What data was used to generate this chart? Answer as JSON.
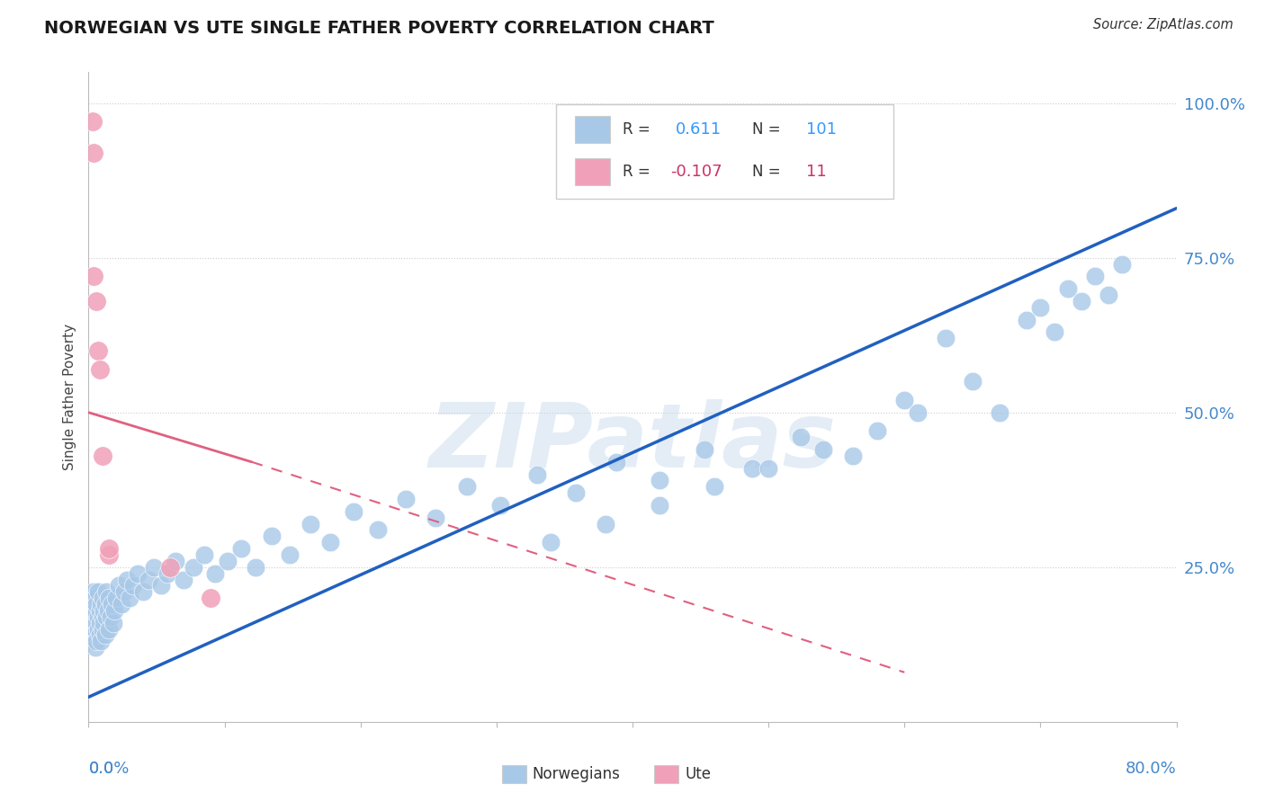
{
  "title": "NORWEGIAN VS UTE SINGLE FATHER POVERTY CORRELATION CHART",
  "source": "Source: ZipAtlas.com",
  "ylabel": "Single Father Poverty",
  "r_norwegian": 0.611,
  "n_norwegian": 101,
  "r_ute": -0.107,
  "n_ute": 11,
  "norwegian_color": "#a8c8e8",
  "ute_color": "#f0a0b8",
  "norwegian_line_color": "#2060c0",
  "ute_line_color": "#e06080",
  "background_color": "#ffffff",
  "grid_color": "#cccccc",
  "title_color": "#1a1a1a",
  "axis_label_color": "#4488cc",
  "legend_r_color_norwegian": "#3399ff",
  "legend_r_color_ute": "#cc3366",
  "norwegians_x": [
    0.001,
    0.001,
    0.002,
    0.002,
    0.002,
    0.003,
    0.003,
    0.003,
    0.004,
    0.004,
    0.004,
    0.005,
    0.005,
    0.005,
    0.005,
    0.006,
    0.006,
    0.006,
    0.007,
    0.007,
    0.007,
    0.008,
    0.008,
    0.008,
    0.009,
    0.009,
    0.01,
    0.01,
    0.01,
    0.011,
    0.011,
    0.012,
    0.012,
    0.013,
    0.013,
    0.014,
    0.015,
    0.015,
    0.016,
    0.017,
    0.018,
    0.019,
    0.02,
    0.022,
    0.024,
    0.026,
    0.028,
    0.03,
    0.033,
    0.036,
    0.04,
    0.044,
    0.048,
    0.053,
    0.058,
    0.064,
    0.07,
    0.077,
    0.085,
    0.093,
    0.102,
    0.112,
    0.123,
    0.135,
    0.148,
    0.163,
    0.178,
    0.195,
    0.213,
    0.233,
    0.255,
    0.278,
    0.303,
    0.33,
    0.358,
    0.388,
    0.42,
    0.453,
    0.488,
    0.524,
    0.562,
    0.6,
    0.63,
    0.65,
    0.67,
    0.69,
    0.7,
    0.71,
    0.72,
    0.73,
    0.74,
    0.75,
    0.76,
    0.61,
    0.58,
    0.54,
    0.5,
    0.46,
    0.42,
    0.38,
    0.34
  ],
  "norwegians_y": [
    0.17,
    0.14,
    0.18,
    0.15,
    0.2,
    0.16,
    0.13,
    0.19,
    0.17,
    0.14,
    0.21,
    0.15,
    0.18,
    0.12,
    0.2,
    0.16,
    0.19,
    0.13,
    0.17,
    0.15,
    0.21,
    0.14,
    0.18,
    0.16,
    0.19,
    0.13,
    0.17,
    0.2,
    0.15,
    0.18,
    0.16,
    0.19,
    0.14,
    0.17,
    0.21,
    0.18,
    0.15,
    0.2,
    0.17,
    0.19,
    0.16,
    0.18,
    0.2,
    0.22,
    0.19,
    0.21,
    0.23,
    0.2,
    0.22,
    0.24,
    0.21,
    0.23,
    0.25,
    0.22,
    0.24,
    0.26,
    0.23,
    0.25,
    0.27,
    0.24,
    0.26,
    0.28,
    0.25,
    0.3,
    0.27,
    0.32,
    0.29,
    0.34,
    0.31,
    0.36,
    0.33,
    0.38,
    0.35,
    0.4,
    0.37,
    0.42,
    0.39,
    0.44,
    0.41,
    0.46,
    0.43,
    0.52,
    0.62,
    0.55,
    0.5,
    0.65,
    0.67,
    0.63,
    0.7,
    0.68,
    0.72,
    0.69,
    0.74,
    0.5,
    0.47,
    0.44,
    0.41,
    0.38,
    0.35,
    0.32,
    0.29
  ],
  "ute_x": [
    0.003,
    0.004,
    0.004,
    0.006,
    0.007,
    0.008,
    0.01,
    0.015,
    0.015,
    0.06,
    0.09
  ],
  "ute_y": [
    0.97,
    0.92,
    0.72,
    0.68,
    0.6,
    0.57,
    0.43,
    0.27,
    0.28,
    0.25,
    0.2
  ],
  "nor_line_x0": 0.0,
  "nor_line_y0": 0.04,
  "nor_line_x1": 0.8,
  "nor_line_y1": 0.83,
  "ute_line_x0": 0.0,
  "ute_line_y0": 0.5,
  "ute_line_x1": 0.6,
  "ute_line_y1": 0.08,
  "xmin": 0.0,
  "xmax": 0.8,
  "ymin": 0.0,
  "ymax": 1.05,
  "yticks": [
    0.25,
    0.5,
    0.75,
    1.0
  ],
  "ytick_labels": [
    "25.0%",
    "50.0%",
    "75.0%",
    "100.0%"
  ]
}
